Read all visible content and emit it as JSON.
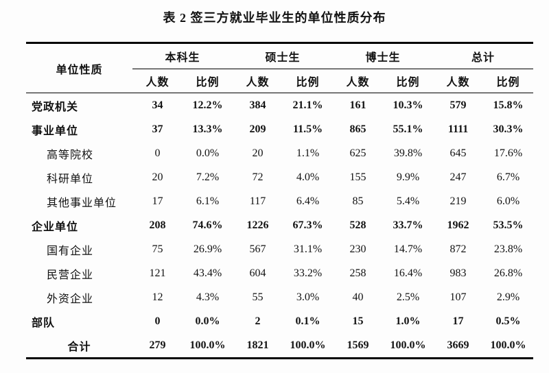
{
  "page": {
    "title": "表 2 签三方就业毕业生的单位性质分布"
  },
  "colors": {
    "background": "#fdfdfd",
    "text": "#111111",
    "rule": "#000000"
  },
  "table": {
    "row_header": "单位性质",
    "groups": [
      {
        "label": "本科生"
      },
      {
        "label": "硕士生"
      },
      {
        "label": "博士生"
      },
      {
        "label": "总计"
      }
    ],
    "subheaders": [
      "人数",
      "比例"
    ],
    "rows": [
      {
        "label": "党政机关",
        "level": "group",
        "bold": true,
        "values": [
          "34",
          "12.2%",
          "384",
          "21.1%",
          "161",
          "10.3%",
          "579",
          "15.8%"
        ]
      },
      {
        "label": "事业单位",
        "level": "group",
        "bold": true,
        "values": [
          "37",
          "13.3%",
          "209",
          "11.5%",
          "865",
          "55.1%",
          "1111",
          "30.3%"
        ]
      },
      {
        "label": "高等院校",
        "level": "sub",
        "bold": false,
        "values": [
          "0",
          "0.0%",
          "20",
          "1.1%",
          "625",
          "39.8%",
          "645",
          "17.6%"
        ]
      },
      {
        "label": "科研单位",
        "level": "sub",
        "bold": false,
        "values": [
          "20",
          "7.2%",
          "72",
          "4.0%",
          "155",
          "9.9%",
          "247",
          "6.7%"
        ]
      },
      {
        "label": "其他事业单位",
        "level": "sub",
        "bold": false,
        "values": [
          "17",
          "6.1%",
          "117",
          "6.4%",
          "85",
          "5.4%",
          "219",
          "6.0%"
        ]
      },
      {
        "label": "企业单位",
        "level": "group",
        "bold": true,
        "values": [
          "208",
          "74.6%",
          "1226",
          "67.3%",
          "528",
          "33.7%",
          "1962",
          "53.5%"
        ]
      },
      {
        "label": "国有企业",
        "level": "sub",
        "bold": false,
        "values": [
          "75",
          "26.9%",
          "567",
          "31.1%",
          "230",
          "14.7%",
          "872",
          "23.8%"
        ]
      },
      {
        "label": "民营企业",
        "level": "sub",
        "bold": false,
        "values": [
          "121",
          "43.4%",
          "604",
          "33.2%",
          "258",
          "16.4%",
          "983",
          "26.8%"
        ]
      },
      {
        "label": "外资企业",
        "level": "sub",
        "bold": false,
        "values": [
          "12",
          "4.3%",
          "55",
          "3.0%",
          "40",
          "2.5%",
          "107",
          "2.9%"
        ]
      },
      {
        "label": "部队",
        "level": "group",
        "bold": true,
        "values": [
          "0",
          "0.0%",
          "2",
          "0.1%",
          "15",
          "1.0%",
          "17",
          "0.5%"
        ]
      },
      {
        "label": "合计",
        "level": "total",
        "bold": true,
        "values": [
          "279",
          "100.0%",
          "1821",
          "100.0%",
          "1569",
          "100.0%",
          "3669",
          "100.0%"
        ]
      }
    ]
  }
}
